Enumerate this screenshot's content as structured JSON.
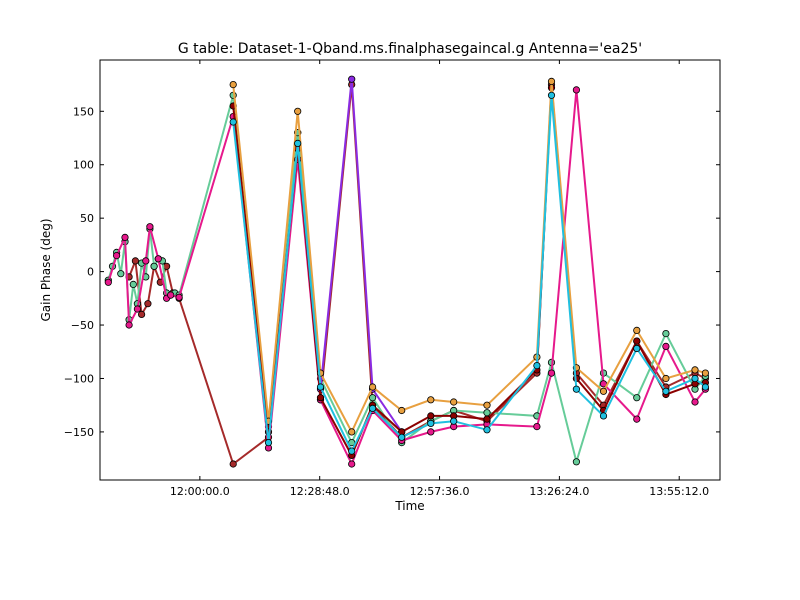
{
  "chart_data": {
    "type": "line",
    "title": "G table: Dataset-1-Qband.ms.finalphasegaincal.g      Antenna='ea25'",
    "xlabel": "Time",
    "ylabel": "Gain Phase (deg)",
    "xlim": [
      "11:36:00",
      "14:05:00"
    ],
    "ylim": [
      -195,
      198
    ],
    "x_ticks": [
      "12:00:00.0",
      "12:28:48.0",
      "12:57:36.0",
      "13:26:24.0",
      "13:55:12.0"
    ],
    "y_ticks": [
      150,
      100,
      50,
      0,
      -50,
      -100,
      -150
    ],
    "grid": false,
    "legend": "none",
    "markers": "circle",
    "colors": {
      "magenta": "#e6198c",
      "green": "#66cc99",
      "purple": "#8a2be2",
      "brown": "#a52a2a",
      "dark": "#1a1a1a",
      "blue": "#1e90ff",
      "cyan": "#20c0e0",
      "tan": "#d2b48c",
      "orange": "#e8a040",
      "pink": "#f0a0c0",
      "darkgreen": "#1a6e1a",
      "darkred": "#8b0000",
      "lime": "#7ec850",
      "violet": "#9932cc",
      "grey": "#888888"
    },
    "series": [
      {
        "color_key": "brown",
        "x": [
          "11:43:00",
          "11:44:30",
          "11:46:00",
          "11:47:30",
          "11:49:00",
          "11:50:30",
          "11:52:00",
          "11:53:30",
          "11:55:00",
          "12:08:00",
          "12:16:30",
          "12:23:30",
          "12:29:00",
          "12:36:30",
          "12:41:30",
          "12:48:30",
          "12:55:30",
          "13:01:00",
          "13:09:00",
          "13:21:00",
          "13:24:30",
          "13:30:30",
          "13:37:00",
          "13:45:00",
          "13:52:00",
          "13:59:00",
          "14:01:30"
        ],
        "y": [
          -5,
          10,
          -40,
          -30,
          5,
          -10,
          5,
          -20,
          -25,
          -180,
          -155,
          130,
          -120,
          175,
          -125,
          -155,
          -140,
          -130,
          -140,
          -95,
          175,
          -95,
          -125,
          -65,
          -108,
          -95,
          -100
        ]
      },
      {
        "color_key": "green",
        "x": [
          "11:38:00",
          "11:39:00",
          "11:40:00",
          "11:41:00",
          "11:42:00",
          "11:43:00",
          "11:44:00",
          "11:45:00",
          "11:46:00",
          "11:47:00",
          "11:48:00",
          "11:49:00",
          "11:50:00",
          "11:51:00",
          "11:52:00",
          "11:53:00",
          "11:54:00",
          "11:55:00",
          "12:08:00",
          "12:16:30",
          "12:23:30",
          "12:29:00",
          "12:36:30",
          "12:41:30",
          "12:48:30",
          "12:55:30",
          "13:01:00",
          "13:09:00",
          "13:21:00",
          "13:24:30",
          "13:30:30",
          "13:37:00",
          "13:45:00",
          "13:52:00",
          "13:59:00",
          "14:01:30"
        ],
        "y": [
          -8,
          5,
          18,
          -2,
          28,
          -45,
          -12,
          -30,
          8,
          -5,
          40,
          5,
          12,
          10,
          -20,
          -22,
          -20,
          -22,
          165,
          -145,
          130,
          -100,
          -160,
          -118,
          -160,
          -140,
          -130,
          -132,
          -135,
          -85,
          -178,
          -95,
          -118,
          -58,
          -110,
          -98
        ]
      },
      {
        "color_key": "magenta",
        "x": [
          "11:38:00",
          "11:40:00",
          "11:42:00",
          "11:43:00",
          "11:45:00",
          "11:47:00",
          "11:48:00",
          "11:50:00",
          "11:52:00",
          "11:53:00",
          "11:55:00",
          "12:08:00",
          "12:16:30",
          "12:23:30",
          "12:29:00",
          "12:36:30",
          "12:41:30",
          "12:48:30",
          "12:55:30",
          "13:01:00",
          "13:09:00",
          "13:21:00",
          "13:24:30",
          "13:30:30",
          "13:37:00",
          "13:45:00",
          "13:52:00",
          "13:59:00",
          "14:01:30"
        ],
        "y": [
          -10,
          15,
          32,
          -50,
          -35,
          10,
          42,
          12,
          -25,
          -22,
          -24,
          145,
          -165,
          105,
          -120,
          -180,
          -130,
          -158,
          -150,
          -145,
          -143,
          -145,
          -95,
          170,
          -105,
          -138,
          -70,
          -122,
          -110
        ]
      },
      {
        "color_key": "purple",
        "x": [
          "12:29:00",
          "12:36:30",
          "12:41:30",
          "12:48:30"
        ],
        "y": [
          -110,
          180,
          -110,
          -150
        ]
      },
      {
        "color_key": "darkred",
        "x": [
          "12:08:00",
          "12:16:30",
          "12:23:30",
          "12:29:00",
          "12:36:30",
          "12:41:30",
          "12:48:30",
          "12:55:30",
          "13:01:00",
          "13:09:00",
          "13:21:00",
          "13:24:30",
          "13:30:30",
          "13:37:00",
          "13:45:00",
          "13:52:00",
          "13:59:00",
          "14:01:30"
        ],
        "y": [
          155,
          -150,
          115,
          -118,
          -172,
          -125,
          -150,
          -135,
          -135,
          -138,
          -92,
          172,
          -100,
          -130,
          -65,
          -115,
          -105,
          -104
        ]
      },
      {
        "color_key": "orange",
        "x": [
          "12:08:00",
          "12:16:30",
          "12:23:30",
          "12:29:00",
          "12:36:30",
          "12:41:30",
          "12:48:30",
          "12:55:30",
          "13:01:00",
          "13:09:00",
          "13:21:00",
          "13:24:30",
          "13:30:30",
          "13:37:00",
          "13:45:00",
          "13:52:00",
          "13:59:00",
          "14:01:30"
        ],
        "y": [
          175,
          -140,
          150,
          -95,
          -150,
          -108,
          -130,
          -120,
          -122,
          -125,
          -80,
          178,
          -90,
          -112,
          -55,
          -100,
          -92,
          -95
        ]
      },
      {
        "color_key": "cyan",
        "x": [
          "12:08:00",
          "12:16:30",
          "12:23:30",
          "12:29:00",
          "12:36:30",
          "12:41:30",
          "12:48:30",
          "12:55:30",
          "13:01:00",
          "13:09:00",
          "13:21:00",
          "13:24:30",
          "13:30:30",
          "13:37:00",
          "13:45:00",
          "13:52:00",
          "13:59:00",
          "14:01:30"
        ],
        "y": [
          140,
          -160,
          120,
          -108,
          -168,
          -128,
          -155,
          -142,
          -140,
          -148,
          -88,
          165,
          -110,
          -135,
          -72,
          -112,
          -100,
          -108
        ]
      }
    ]
  }
}
